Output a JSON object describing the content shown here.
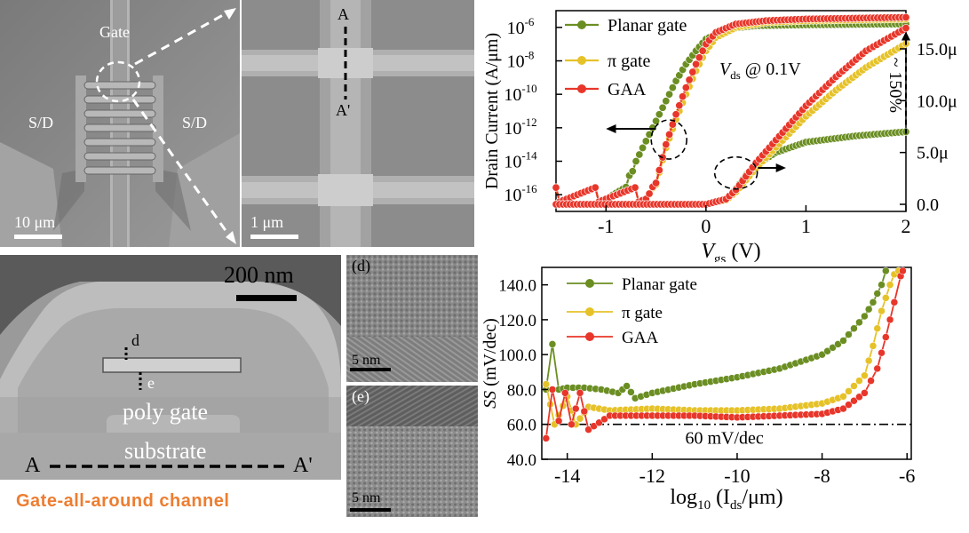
{
  "sem_overview": {
    "gate": "Gate",
    "sd_left": "S/D",
    "sd_right": "S/D",
    "scale": "10 μm"
  },
  "sem_zoom": {
    "a": "A",
    "a_prime": "A'",
    "scale": "1 μm"
  },
  "tem_cross": {
    "scale": "200 nm",
    "d": "d",
    "e": "e",
    "poly_gate": "poly gate",
    "substrate": "substrate",
    "a": "A",
    "a_prime": "A'",
    "caption": "Gate-all-around channel"
  },
  "tem_d": {
    "label": "(d)",
    "scale": "5 nm"
  },
  "tem_e": {
    "label": "(e)",
    "scale": "5 nm"
  },
  "colors": {
    "planar": "#6b8e23",
    "pi": "#e6c229",
    "gaa": "#e8362a",
    "caption": "#ed7d31"
  },
  "chart_data": [
    {
      "type": "line",
      "y_scale": "log",
      "xlabel_main": "V",
      "xlabel_sub": "gs",
      "xlabel_unit": " (V)",
      "ylabel": "Drain Current (A/μm)",
      "x_ticks": [
        "-1",
        "0",
        "1",
        "2"
      ],
      "xlim": [
        -1.5,
        2.0
      ],
      "ylim_log": [
        -17,
        -5
      ],
      "y_ticks_left": [
        "10-16",
        "10-14",
        "10-12",
        "10-10",
        "10-8",
        "10-6"
      ],
      "y_ticks_right": [
        "0.0",
        "5.0μ",
        "10.0μ",
        "15.0μ"
      ],
      "ylim_right": [
        0,
        1.8e-05
      ],
      "annotation_vds": "@ 0.1V",
      "annotation_vds_main": "V",
      "annotation_vds_sub": "ds",
      "annotation_pct": "~ 150%",
      "series": [
        {
          "name": "Planar gate",
          "axis": "left",
          "x": [
            -1.5,
            -1.0,
            -0.8,
            -0.7,
            -0.6,
            -0.5,
            -0.4,
            -0.3,
            -0.2,
            -0.1,
            0.0,
            0.2,
            0.5,
            1.0,
            1.5,
            2.0
          ],
          "y_log": [
            -16.0,
            -16.0,
            -15.8,
            -14.0,
            -12.8,
            -11.6,
            -10.4,
            -9.2,
            -8.2,
            -7.4,
            -6.7,
            -6.1,
            -5.9,
            -5.85,
            -5.82,
            -5.8
          ]
        },
        {
          "name": "π gate",
          "axis": "left",
          "x": [
            -1.5,
            -1.0,
            -0.6,
            -0.5,
            -0.4,
            -0.3,
            -0.2,
            -0.1,
            0.0,
            0.1,
            0.3,
            0.6,
            1.0,
            1.5,
            2.0
          ],
          "y_log": [
            -16.0,
            -16.0,
            -16.0,
            -15.4,
            -13.2,
            -11.5,
            -10.0,
            -8.6,
            -7.4,
            -6.6,
            -6.0,
            -5.7,
            -5.6,
            -5.55,
            -5.5
          ]
        },
        {
          "name": "GAA",
          "axis": "left",
          "x": [
            -1.5,
            -1.0,
            -0.6,
            -0.5,
            -0.4,
            -0.3,
            -0.2,
            -0.1,
            0.0,
            0.1,
            0.3,
            0.6,
            1.0,
            1.5,
            2.0
          ],
          "y_log": [
            -16.0,
            -16.0,
            -16.0,
            -15.3,
            -13.0,
            -11.2,
            -9.6,
            -8.2,
            -7.0,
            -6.3,
            -5.8,
            -5.6,
            -5.5,
            -5.45,
            -5.4
          ]
        },
        {
          "name": "Planar gate",
          "axis": "right",
          "x": [
            -1.5,
            0.0,
            0.2,
            0.3,
            0.4,
            0.5,
            0.7,
            1.0,
            1.5,
            2.0
          ],
          "y": [
            0,
            0,
            5e-07,
            1.5e-06,
            2.8e-06,
            3.8e-06,
            5e-06,
            6e-06,
            6.6e-06,
            7e-06
          ]
        },
        {
          "name": "π gate",
          "axis": "right",
          "x": [
            -1.5,
            0.0,
            0.2,
            0.3,
            0.5,
            0.8,
            1.0,
            1.3,
            1.6,
            2.0
          ],
          "y": [
            0,
            0,
            4e-07,
            1.2e-06,
            3.5e-06,
            6.5e-06,
            8.5e-06,
            1.1e-05,
            1.32e-05,
            1.55e-05
          ]
        },
        {
          "name": "GAA",
          "axis": "right",
          "x": [
            -1.5,
            0.0,
            0.2,
            0.3,
            0.5,
            0.8,
            1.0,
            1.3,
            1.6,
            2.0
          ],
          "y": [
            0,
            0,
            5e-07,
            1.4e-06,
            4e-06,
            7.3e-06,
            9.5e-06,
            1.23e-05,
            1.48e-05,
            1.7e-05
          ]
        }
      ]
    },
    {
      "type": "line",
      "xlabel_main": "log",
      "xlabel_sub": "10",
      "xlabel_rest": " (I",
      "xlabel_sub2": "ds",
      "xlabel_unit": "/μm)",
      "ylabel_main": "SS",
      "ylabel_unit": " (mV/dec)",
      "x_ticks": [
        "-14",
        "-12",
        "-10",
        "-8",
        "-6"
      ],
      "xlim": [
        -14.6,
        -5.9
      ],
      "ylim": [
        40,
        150
      ],
      "y_ticks": [
        "40.0",
        "60.0",
        "80.0",
        "100.0",
        "120.0",
        "140.0"
      ],
      "reference_line": {
        "value": 60,
        "label": "60 mV/dec"
      },
      "series": [
        {
          "name": "Planar gate",
          "x": [
            -14.5,
            -14.35,
            -14.2,
            -14.0,
            -13.6,
            -13.2,
            -12.8,
            -12.6,
            -12.4,
            -12.0,
            -11.0,
            -10.0,
            -9.0,
            -8.0,
            -7.5,
            -7.0,
            -6.8,
            -6.6,
            -6.5
          ],
          "y": [
            80,
            106,
            80,
            81,
            81,
            80,
            78,
            82,
            75,
            78,
            83,
            87,
            92,
            100,
            108,
            122,
            130,
            140,
            148
          ]
        },
        {
          "name": "π gate",
          "x": [
            -14.5,
            -14.3,
            -14.0,
            -13.8,
            -13.5,
            -13.0,
            -12.0,
            -11.0,
            -10.0,
            -9.0,
            -8.0,
            -7.5,
            -7.0,
            -6.8,
            -6.6,
            -6.4,
            -6.3,
            -6.2
          ],
          "y": [
            83,
            60,
            76,
            60,
            70,
            68,
            69,
            68,
            68,
            69,
            72,
            76,
            88,
            105,
            125,
            140,
            146,
            148
          ]
        },
        {
          "name": "GAA",
          "x": [
            -14.5,
            -14.35,
            -14.2,
            -14.05,
            -13.9,
            -13.7,
            -13.5,
            -13.0,
            -12.0,
            -11.0,
            -10.0,
            -9.0,
            -8.0,
            -7.5,
            -7.0,
            -6.7,
            -6.5,
            -6.3,
            -6.15,
            -6.1
          ],
          "y": [
            52,
            80,
            62,
            78,
            60,
            78,
            57,
            65,
            65,
            65,
            64,
            65,
            66,
            69,
            78,
            92,
            110,
            130,
            145,
            148
          ]
        }
      ]
    }
  ]
}
